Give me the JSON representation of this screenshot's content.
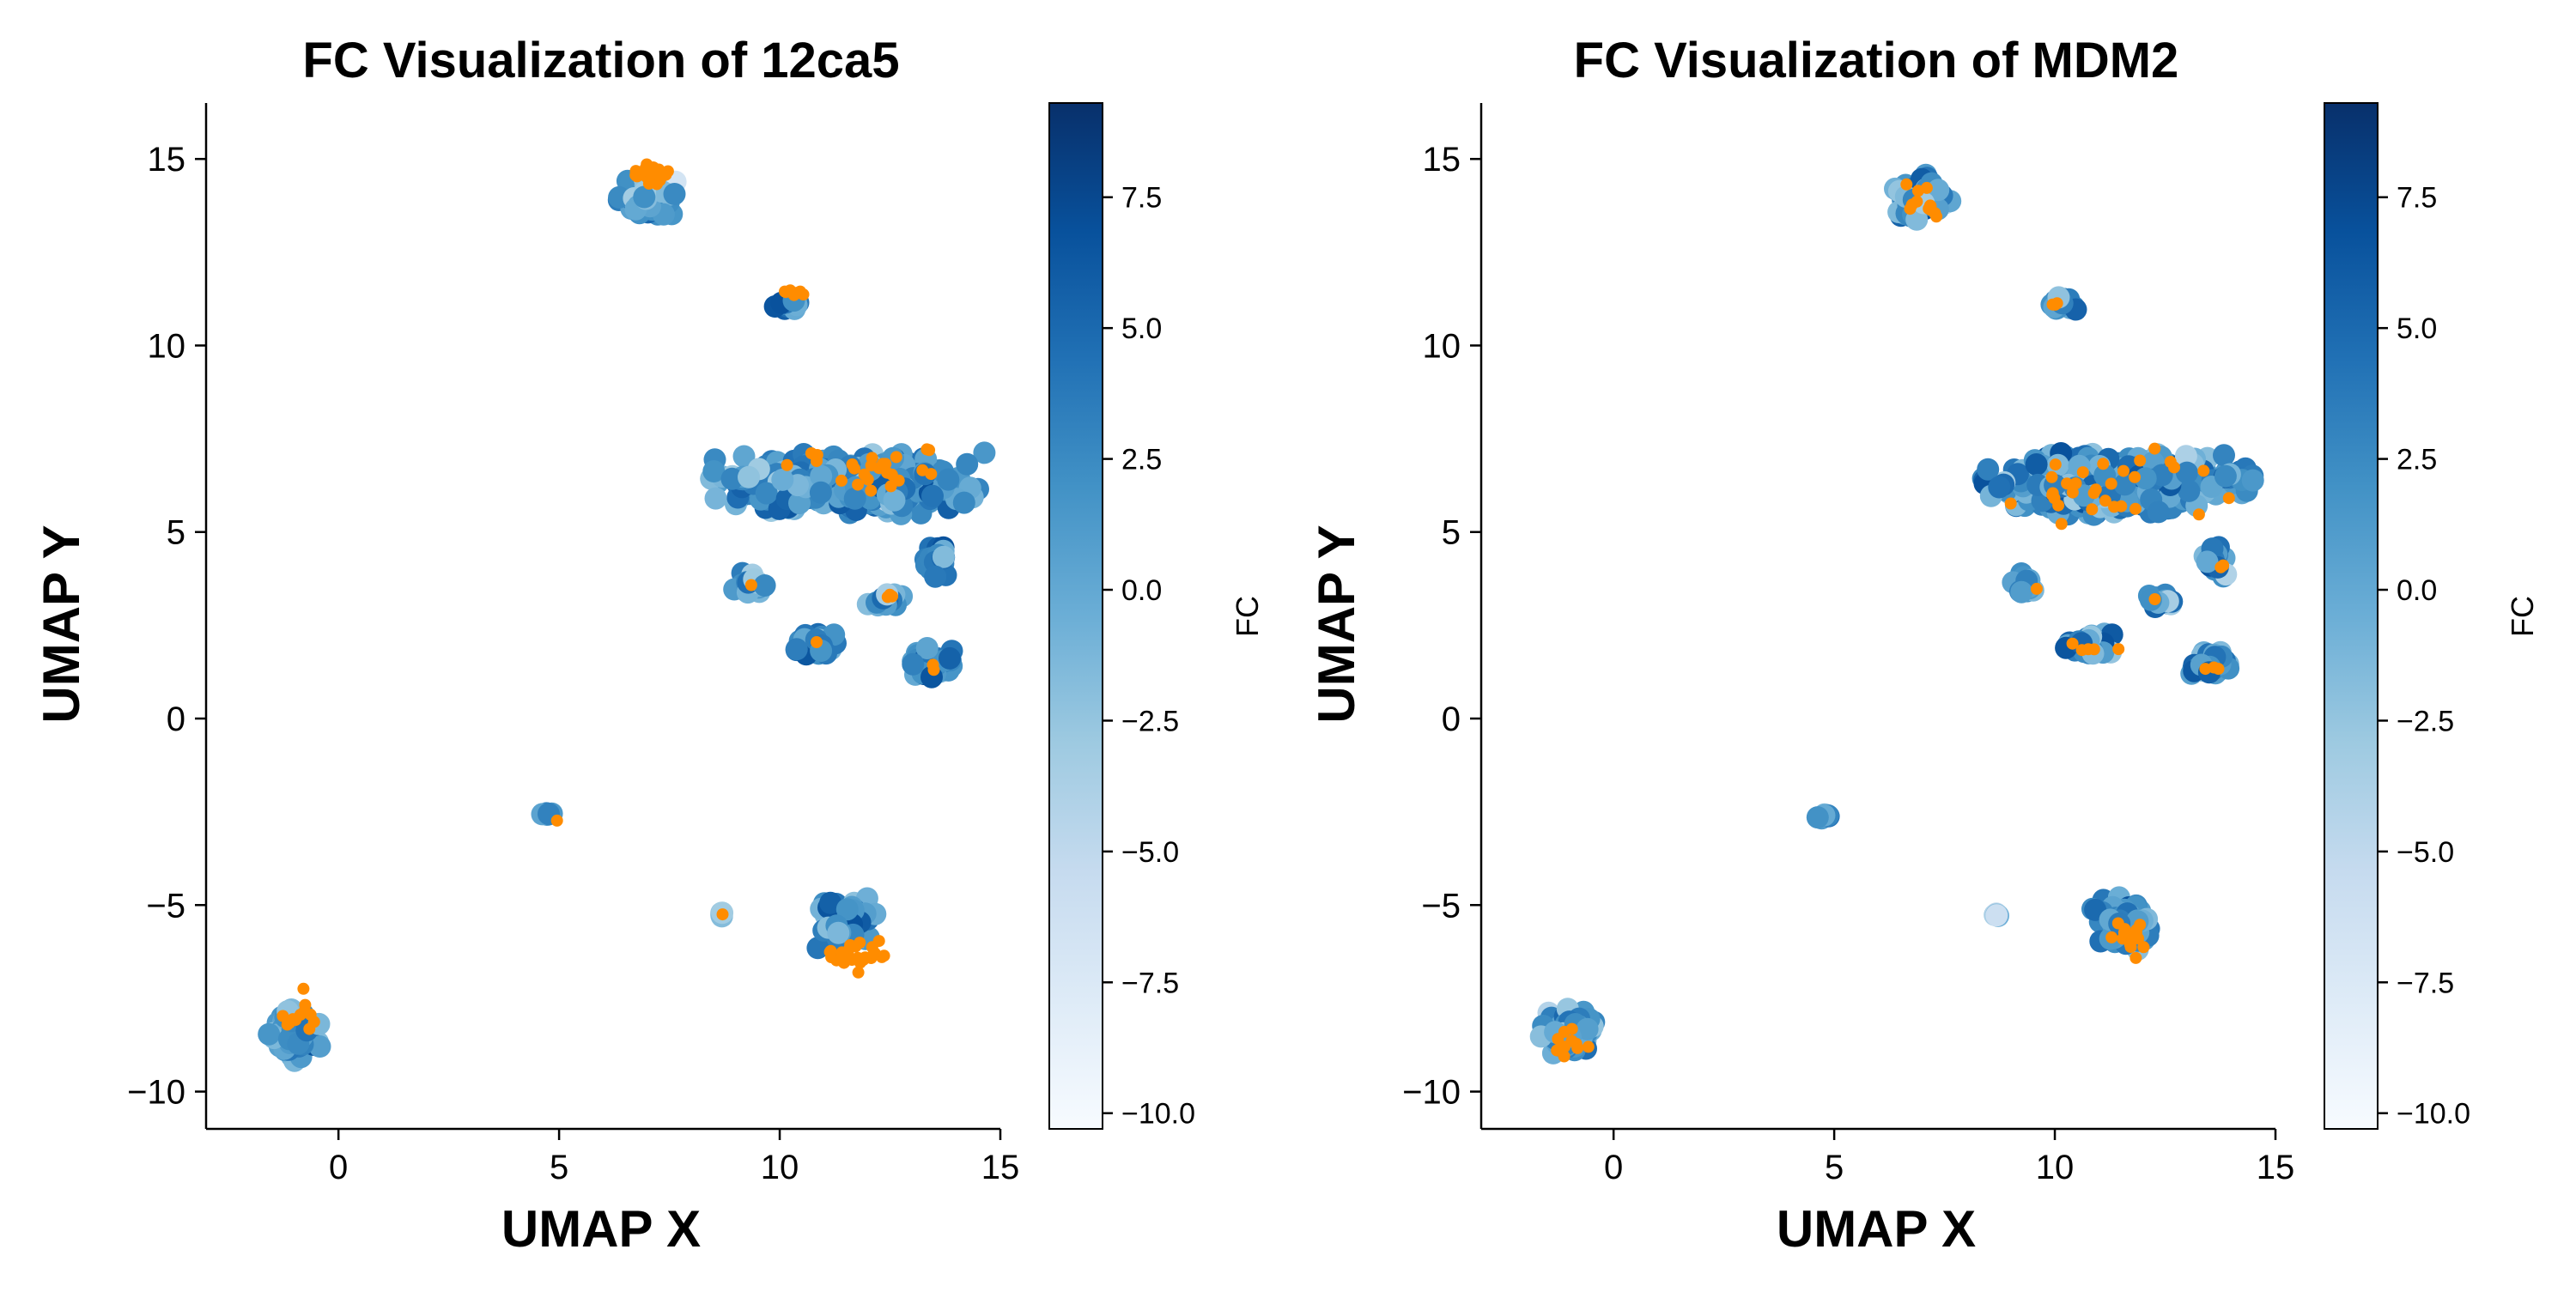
{
  "colors": {
    "accent_orange": "#ff8c00",
    "cmap_low": "#f7fbff",
    "cmap_high": "#08306b",
    "axis": "#000000"
  },
  "colorbar": {
    "label": "FC",
    "range": [
      -10.3,
      9.3
    ],
    "ticks": [
      -10.0,
      -7.5,
      -5.0,
      -2.5,
      0.0,
      2.5,
      5.0,
      7.5
    ],
    "tick_labels": [
      "−10.0",
      "−7.5",
      "−5.0",
      "−2.5",
      "0.0",
      "2.5",
      "5.0",
      "7.5"
    ],
    "colormap": "Blues"
  },
  "chart_data": [
    {
      "type": "scatter",
      "title": "FC Visualization of 12ca5",
      "xlabel": "UMAP X",
      "ylabel": "UMAP Y",
      "xlim": [
        -3,
        15
      ],
      "ylim": [
        -11,
        16.5
      ],
      "xticks": [
        0,
        5,
        10,
        15
      ],
      "yticks": [
        -10,
        -5,
        0,
        5,
        10,
        15
      ],
      "ytick_labels": [
        "−10",
        "−5",
        "0",
        "5",
        "10",
        "15"
      ],
      "grid": false,
      "colorbar_label": "FC",
      "clusters": [
        {
          "center": [
            7.0,
            14.0
          ],
          "spread": [
            0.55,
            0.55
          ],
          "fc_mean": 2.5,
          "highlight_center": [
            7.2,
            14.6
          ],
          "highlight_spread": [
            0.35,
            0.2
          ],
          "highlight_count": 30
        },
        {
          "center": [
            10.2,
            11.1
          ],
          "spread": [
            0.35,
            0.18
          ],
          "fc_mean": 3.5,
          "highlight_center": [
            10.3,
            11.4
          ],
          "highlight_spread": [
            0.2,
            0.1
          ],
          "highlight_count": 8
        },
        {
          "center": [
            11.5,
            6.3
          ],
          "spread": [
            2.6,
            0.7
          ],
          "fc_mean": 3.0,
          "highlight_center": [
            11.8,
            6.6
          ],
          "highlight_spread": [
            1.2,
            0.6
          ],
          "highlight_count": 25
        },
        {
          "center": [
            9.3,
            3.6
          ],
          "spread": [
            0.3,
            0.25
          ],
          "fc_mean": 2.0,
          "highlight_center": [
            9.3,
            3.6
          ],
          "highlight_spread": [
            0.1,
            0.1
          ],
          "highlight_count": 1
        },
        {
          "center": [
            10.8,
            2.0
          ],
          "spread": [
            0.5,
            0.3
          ],
          "fc_mean": 3.5,
          "highlight_center": [
            10.8,
            2.0
          ],
          "highlight_spread": [
            0.1,
            0.1
          ],
          "highlight_count": 1
        },
        {
          "center": [
            12.4,
            3.2
          ],
          "spread": [
            0.35,
            0.2
          ],
          "fc_mean": 2.0,
          "highlight_center": [
            12.5,
            3.3
          ],
          "highlight_spread": [
            0.15,
            0.1
          ],
          "highlight_count": 3
        },
        {
          "center": [
            13.6,
            4.2
          ],
          "spread": [
            0.25,
            0.4
          ],
          "fc_mean": 4.0,
          "highlight_center": [
            13.6,
            4.2
          ],
          "highlight_spread": [
            0.1,
            0.1
          ],
          "highlight_count": 0
        },
        {
          "center": [
            13.5,
            1.5
          ],
          "spread": [
            0.45,
            0.35
          ],
          "fc_mean": 3.0,
          "highlight_center": [
            13.5,
            1.4
          ],
          "highlight_spread": [
            0.1,
            0.1
          ],
          "highlight_count": 2
        },
        {
          "center": [
            4.75,
            -2.6
          ],
          "spread": [
            0.15,
            0.08
          ],
          "fc_mean": 4.5,
          "highlight_center": [
            4.95,
            -2.7
          ],
          "highlight_spread": [
            0.05,
            0.05
          ],
          "highlight_count": 1
        },
        {
          "center": [
            8.7,
            -5.25
          ],
          "spread": [
            0.05,
            0.05
          ],
          "fc_mean": -2.5,
          "highlight_center": [
            8.7,
            -5.25
          ],
          "highlight_spread": [
            0.02,
            0.02
          ],
          "highlight_count": 1
        },
        {
          "center": [
            11.5,
            -5.5
          ],
          "spread": [
            0.6,
            0.6
          ],
          "fc_mean": 3.0,
          "highlight_center": [
            11.8,
            -6.3
          ],
          "highlight_spread": [
            0.6,
            0.35
          ],
          "highlight_count": 25
        },
        {
          "center": [
            -1.0,
            -8.5
          ],
          "spread": [
            0.55,
            0.6
          ],
          "fc_mean": 1.5,
          "highlight_center": [
            -0.8,
            -8.0
          ],
          "highlight_spread": [
            0.4,
            0.35
          ],
          "highlight_count": 12
        }
      ]
    },
    {
      "type": "scatter",
      "title": "FC Visualization of MDM2",
      "xlabel": "UMAP X",
      "ylabel": "UMAP Y",
      "xlim": [
        -3,
        15
      ],
      "ylim": [
        -11,
        16.5
      ],
      "xticks": [
        0,
        5,
        10,
        15
      ],
      "yticks": [
        -10,
        -5,
        0,
        5,
        10,
        15
      ],
      "ytick_labels": [
        "−10",
        "−5",
        "0",
        "5",
        "10",
        "15"
      ],
      "grid": false,
      "colorbar_label": "FC",
      "clusters": [
        {
          "center": [
            7.0,
            14.0
          ],
          "spread": [
            0.55,
            0.55
          ],
          "fc_mean": 1.5,
          "highlight_center": [
            7.1,
            13.9
          ],
          "highlight_spread": [
            0.4,
            0.5
          ],
          "highlight_count": 12
        },
        {
          "center": [
            10.2,
            11.1
          ],
          "spread": [
            0.35,
            0.18
          ],
          "fc_mean": 2.5,
          "highlight_center": [
            10.1,
            11.1
          ],
          "highlight_spread": [
            0.2,
            0.1
          ],
          "highlight_count": 3
        },
        {
          "center": [
            11.5,
            6.3
          ],
          "spread": [
            2.6,
            0.7
          ],
          "fc_mean": 3.0,
          "highlight_center": [
            11.5,
            6.2
          ],
          "highlight_spread": [
            1.8,
            0.7
          ],
          "highlight_count": 30
        },
        {
          "center": [
            9.3,
            3.6
          ],
          "spread": [
            0.3,
            0.25
          ],
          "fc_mean": 1.5,
          "highlight_center": [
            9.5,
            3.5
          ],
          "highlight_spread": [
            0.1,
            0.1
          ],
          "highlight_count": 1
        },
        {
          "center": [
            10.8,
            2.0
          ],
          "spread": [
            0.5,
            0.3
          ],
          "fc_mean": 3.0,
          "highlight_center": [
            10.8,
            1.9
          ],
          "highlight_spread": [
            0.4,
            0.15
          ],
          "highlight_count": 5
        },
        {
          "center": [
            12.4,
            3.2
          ],
          "spread": [
            0.35,
            0.2
          ],
          "fc_mean": 2.0,
          "highlight_center": [
            12.3,
            3.2
          ],
          "highlight_spread": [
            0.1,
            0.1
          ],
          "highlight_count": 1
        },
        {
          "center": [
            13.6,
            4.2
          ],
          "spread": [
            0.25,
            0.4
          ],
          "fc_mean": 3.5,
          "highlight_center": [
            13.8,
            4.1
          ],
          "highlight_spread": [
            0.05,
            0.1
          ],
          "highlight_count": 2
        },
        {
          "center": [
            13.5,
            1.5
          ],
          "spread": [
            0.45,
            0.35
          ],
          "fc_mean": 3.0,
          "highlight_center": [
            13.6,
            1.3
          ],
          "highlight_spread": [
            0.2,
            0.1
          ],
          "highlight_count": 3
        },
        {
          "center": [
            4.75,
            -2.6
          ],
          "spread": [
            0.15,
            0.08
          ],
          "fc_mean": 4.5,
          "highlight_center": [
            4.75,
            -2.6
          ],
          "highlight_spread": [
            0.05,
            0.05
          ],
          "highlight_count": 0
        },
        {
          "center": [
            8.7,
            -5.25
          ],
          "spread": [
            0.05,
            0.05
          ],
          "fc_mean": -2.5,
          "highlight_center": [
            8.7,
            -5.25
          ],
          "highlight_spread": [
            0.02,
            0.02
          ],
          "highlight_count": 0
        },
        {
          "center": [
            11.5,
            -5.5
          ],
          "spread": [
            0.6,
            0.6
          ],
          "fc_mean": 3.0,
          "highlight_center": [
            11.6,
            -6.0
          ],
          "highlight_spread": [
            0.5,
            0.5
          ],
          "highlight_count": 15
        },
        {
          "center": [
            -1.0,
            -8.5
          ],
          "spread": [
            0.55,
            0.6
          ],
          "fc_mean": 1.5,
          "highlight_center": [
            -1.0,
            -8.7
          ],
          "highlight_spread": [
            0.45,
            0.4
          ],
          "highlight_count": 10
        }
      ]
    }
  ]
}
